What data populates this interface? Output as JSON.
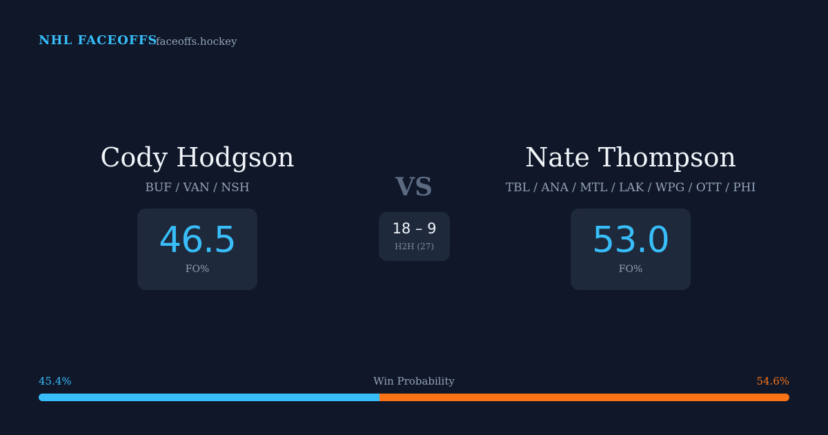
{
  "header": {
    "brand": "NHL FACEOFFS",
    "site": "faceoffs.hockey"
  },
  "players": [
    {
      "name": "Cody Hodgson",
      "teams": "BUF / VAN / NSH",
      "fo_pct": "46.5",
      "fo_label": "FO%"
    },
    {
      "name": "Nate Thompson",
      "teams": "TBL / ANA / MTL / LAK / WPG / OTT / PHI",
      "fo_pct": "53.0",
      "fo_label": "FO%"
    }
  ],
  "versus": "VS",
  "head_to_head": {
    "record": "18 – 9",
    "label": "H2H (27)"
  },
  "win_probability": {
    "title": "Win Probability",
    "left": {
      "value": 45.4,
      "label": "45.4%",
      "color": "#38bdf8"
    },
    "right": {
      "value": 54.6,
      "label": "54.6%",
      "color": "#f97316"
    }
  }
}
